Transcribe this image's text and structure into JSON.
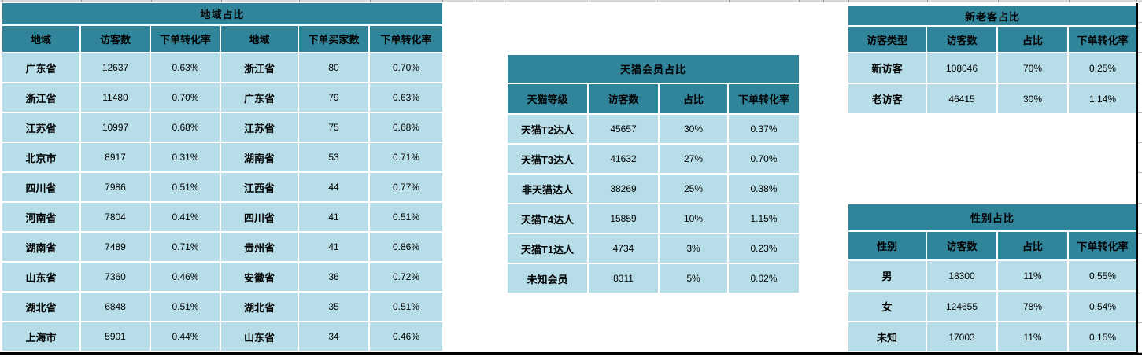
{
  "colors": {
    "header_teal": "#31859B",
    "cell_blue": "#B7DEE8",
    "gridline_grey": "#D9D9D9",
    "sheet_border_black": "#000000"
  },
  "tables": {
    "region": {
      "title": "地域占比",
      "headers": [
        "地域",
        "访客数",
        "下单转化率",
        "地域",
        "下单买家数",
        "下单转化率"
      ],
      "rows": [
        [
          "广东省",
          "12637",
          "0.63%",
          "浙江省",
          "80",
          "0.70%"
        ],
        [
          "浙江省",
          "11480",
          "0.70%",
          "广东省",
          "79",
          "0.63%"
        ],
        [
          "江苏省",
          "10997",
          "0.68%",
          "江苏省",
          "75",
          "0.68%"
        ],
        [
          "北京市",
          "8917",
          "0.31%",
          "湖南省",
          "53",
          "0.71%"
        ],
        [
          "四川省",
          "7986",
          "0.51%",
          "江西省",
          "44",
          "0.77%"
        ],
        [
          "河南省",
          "7804",
          "0.41%",
          "四川省",
          "41",
          "0.51%"
        ],
        [
          "湖南省",
          "7489",
          "0.71%",
          "贵州省",
          "41",
          "0.86%"
        ],
        [
          "山东省",
          "7360",
          "0.46%",
          "安徽省",
          "36",
          "0.72%"
        ],
        [
          "湖北省",
          "6848",
          "0.51%",
          "湖北省",
          "35",
          "0.51%"
        ],
        [
          "上海市",
          "5901",
          "0.44%",
          "山东省",
          "34",
          "0.46%"
        ]
      ]
    },
    "tmall": {
      "title": "天猫会员占比",
      "headers": [
        "天猫等级",
        "访客数",
        "占比",
        "下单转化率"
      ],
      "rows": [
        [
          "天猫T2达人",
          "45657",
          "30%",
          "0.37%"
        ],
        [
          "天猫T3达人",
          "41632",
          "27%",
          "0.70%"
        ],
        [
          "非天猫达人",
          "38269",
          "25%",
          "0.38%"
        ],
        [
          "天猫T4达人",
          "15859",
          "10%",
          "1.15%"
        ],
        [
          "天猫T1达人",
          "4734",
          "3%",
          "0.23%"
        ],
        [
          "未知会员",
          "8311",
          "5%",
          "0.02%"
        ]
      ]
    },
    "newold": {
      "title": "新老客占比",
      "headers": [
        "访客类型",
        "访客数",
        "占比",
        "下单转化率"
      ],
      "rows": [
        [
          "新访客",
          "108046",
          "70%",
          "0.25%"
        ],
        [
          "老访客",
          "46415",
          "30%",
          "1.14%"
        ]
      ]
    },
    "gender": {
      "title": "性别占比",
      "headers": [
        "性别",
        "访客数",
        "占比",
        "下单转化率"
      ],
      "rows": [
        [
          "男",
          "18300",
          "11%",
          "0.55%"
        ],
        [
          "女",
          "124655",
          "78%",
          "0.54%"
        ],
        [
          "未知",
          "17003",
          "11%",
          "0.15%"
        ]
      ]
    }
  }
}
